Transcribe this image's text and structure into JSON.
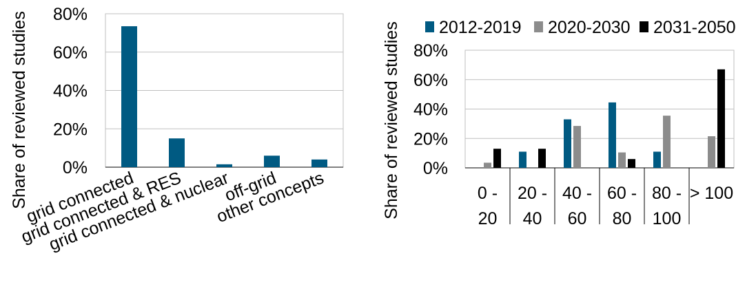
{
  "chart_data": [
    {
      "type": "bar",
      "ylabel": "Share of reviewed studies",
      "ylim": [
        0,
        80
      ],
      "yticks": [
        "0%",
        "20%",
        "40%",
        "60%",
        "80%"
      ],
      "categories": [
        "grid connected",
        "grid connected & RES",
        "grid connected & nuclear",
        "off-grid",
        "other concepts"
      ],
      "values": [
        73.5,
        15,
        1.5,
        6,
        4
      ],
      "color": "#005a82",
      "grid": true
    },
    {
      "type": "bar",
      "ylabel": "Share of reviewed studies",
      "ylim": [
        0,
        80
      ],
      "yticks": [
        "0%",
        "20%",
        "40%",
        "60%",
        "80%"
      ],
      "categories": [
        [
          "0 -",
          "20"
        ],
        [
          "20 -",
          "40"
        ],
        [
          "40 -",
          "60"
        ],
        [
          "60 -",
          "80"
        ],
        [
          "80 -",
          "100"
        ],
        [
          "> 100",
          ""
        ]
      ],
      "series": [
        {
          "name": "2012-2019",
          "color": "#005a82",
          "values": [
            0,
            11,
            33,
            44.5,
            11,
            0
          ]
        },
        {
          "name": "2020-2030",
          "color": "#8c8c8c",
          "values": [
            3.5,
            0,
            28.5,
            10.5,
            35.5,
            21.5
          ]
        },
        {
          "name": "2031-2050",
          "color": "#000000",
          "values": [
            13,
            13,
            0,
            6,
            0,
            67
          ]
        }
      ],
      "legend": "top",
      "grid": true
    }
  ]
}
